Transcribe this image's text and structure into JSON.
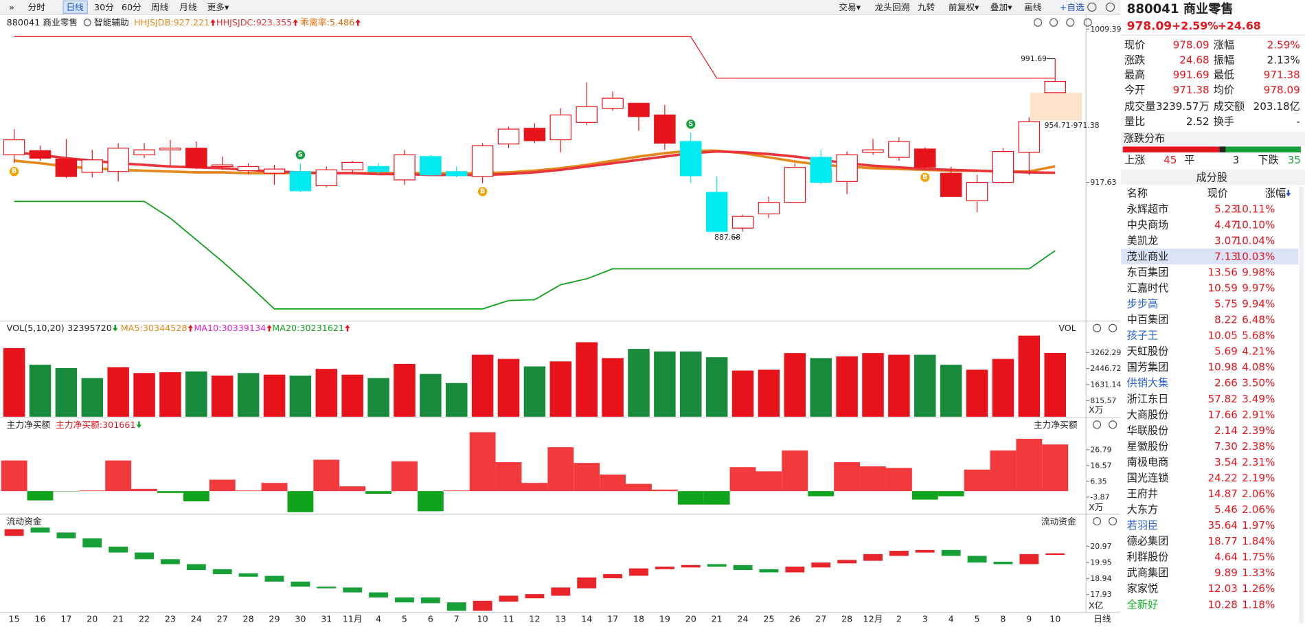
{
  "toolbar": {
    "left": [
      "»",
      "分时",
      "日线",
      "30分",
      "60分",
      "周线",
      "月线",
      "更多▾"
    ],
    "right": [
      "交易▾",
      "龙头回溯",
      "九转",
      "前复权▾",
      "叠加▾",
      "画线",
      "+自选"
    ]
  },
  "chart_data": [
    {
      "type": "candlestick",
      "title": "880041 商业零售",
      "helper": "智能辅助",
      "indicator": "乖离率:5.486",
      "categories": [
        "15",
        "16",
        "17",
        "20",
        "21",
        "22",
        "23",
        "24",
        "27",
        "28",
        "29",
        "30",
        "31",
        "11月",
        "4",
        "5",
        "6",
        "7",
        "10",
        "11",
        "12",
        "13",
        "14",
        "17",
        "18",
        "19",
        "20",
        "21",
        "24",
        "25",
        "26",
        "27",
        "28",
        "12月",
        "2",
        "3",
        "4",
        "5",
        "8",
        "9",
        "10"
      ],
      "open": [
        934.1,
        936.6,
        931.6,
        923.6,
        924.1,
        934.1,
        937.1,
        938.1,
        927.1,
        924.6,
        923.1,
        924.1,
        915.6,
        925.1,
        927.1,
        919.1,
        933.1,
        924.1,
        921.1,
        940.6,
        950.0,
        943.1,
        953.5,
        962.0,
        965.0,
        958.0,
        942.1,
        911.6,
        890.2,
        898.7,
        905.6,
        932.6,
        918.1,
        935.6,
        932.6,
        937.6,
        923.1,
        906.6,
        917.6,
        935.6,
        971.38
      ],
      "high": [
        949.5,
        939.6,
        943.6,
        937.1,
        941.1,
        941.1,
        943.1,
        942.1,
        933.1,
        929.1,
        928.1,
        929.1,
        927.1,
        930.6,
        929.1,
        937.1,
        934.1,
        927.1,
        941.1,
        951.0,
        953.0,
        962.0,
        977.5,
        972.0,
        965.0,
        964.0,
        947.5,
        921.1,
        898.2,
        909.1,
        929.1,
        937.1,
        936.1,
        943.6,
        944.6,
        938.6,
        927.1,
        922.1,
        938.1,
        956.5,
        991.69
      ],
      "low": [
        929.1,
        930.6,
        920.1,
        920.6,
        918.1,
        932.1,
        927.1,
        925.6,
        925.1,
        922.6,
        916.1,
        911.6,
        914.6,
        923.6,
        922.6,
        916.1,
        921.1,
        920.6,
        917.1,
        938.1,
        941.1,
        935.6,
        952.0,
        960.5,
        948.5,
        937.1,
        917.1,
        887.68,
        888.2,
        896.2,
        905.6,
        916.6,
        910.6,
        934.1,
        930.6,
        925.6,
        909.1,
        899.7,
        917.1,
        922.1,
        971.38
      ],
      "close": [
        943.1,
        932.1,
        921.1,
        931.1,
        938.1,
        937.1,
        938.1,
        926.6,
        928.1,
        927.1,
        925.6,
        912.6,
        925.1,
        929.6,
        924.1,
        934.1,
        922.1,
        921.6,
        939.6,
        949.5,
        942.6,
        958.0,
        963.0,
        968.0,
        957.0,
        941.1,
        921.6,
        888.2,
        897.2,
        905.6,
        926.6,
        917.6,
        934.1,
        937.1,
        942.1,
        926.6,
        909.1,
        917.6,
        936.1,
        954.0,
        978.09
      ],
      "styles": [
        "h",
        "r",
        "r",
        "h",
        "h",
        "h",
        "h",
        "r",
        "h",
        "h",
        "h",
        "c",
        "h",
        "h",
        "c",
        "h",
        "c",
        "c",
        "h",
        "h",
        "r",
        "h",
        "h",
        "h",
        "r",
        "r",
        "c",
        "c",
        "h",
        "h",
        "h",
        "c",
        "h",
        "h",
        "h",
        "r",
        "r",
        "h",
        "h",
        "h",
        "h"
      ],
      "palette": {
        "h": "#e8141c",
        "r": "#e8141c",
        "c": "#00eaf0"
      },
      "hollow": "h",
      "ylim": [
        835.8,
        1015.9
      ],
      "yticks": [
        1009.39,
        917.63
      ],
      "series": [
        {
          "name": "HHJSJDB:927.221",
          "color": "#e3891c",
          "width": 3,
          "values": [
            930.6,
            929.1,
            927.1,
            926.1,
            925.1,
            924.6,
            924.1,
            923.6,
            923.6,
            923.1,
            923.1,
            923.1,
            923.1,
            923.1,
            923.1,
            923.1,
            923.1,
            923.1,
            923.1,
            923.6,
            924.6,
            926.1,
            928.1,
            930.6,
            933.1,
            935.1,
            936.6,
            936.6,
            935.1,
            932.6,
            930.1,
            928.1,
            927.1,
            926.1,
            925.6,
            925.1,
            924.6,
            924.6,
            924.1,
            924.1,
            927.221
          ]
        },
        {
          "name": "HHJSJDC:923.355",
          "color": "#e8343a",
          "width": 3,
          "values": [
            935.6,
            934.1,
            932.1,
            930.6,
            929.1,
            928.1,
            927.1,
            926.6,
            926.1,
            925.1,
            924.1,
            923.6,
            923.1,
            923.1,
            922.6,
            922.6,
            922.1,
            922.1,
            922.1,
            922.6,
            923.6,
            925.1,
            927.1,
            929.1,
            931.1,
            933.1,
            935.1,
            936.1,
            935.6,
            934.6,
            933.1,
            931.1,
            929.1,
            927.6,
            926.6,
            925.6,
            925.1,
            924.6,
            924.1,
            923.6,
            923.355
          ]
        },
        {
          "color": "#e8141c",
          "width": 1,
          "values": [
            1004.9,
            1004.9,
            1004.9,
            1004.9,
            1004.9,
            1004.9,
            1004.9,
            1004.9,
            1004.9,
            1004.9,
            1004.9,
            1004.9,
            1004.9,
            1004.9,
            1004.9,
            1004.9,
            1004.9,
            1004.9,
            1004.9,
            1004.9,
            1004.9,
            1004.9,
            1004.9,
            1004.9,
            1004.9,
            1004.9,
            1004.9,
            980.0,
            980.0,
            980.0,
            980.0,
            980.0,
            980.0,
            980.0,
            980.0,
            980.0,
            980.0,
            980.0,
            980.0,
            980.0,
            980.0
          ]
        },
        {
          "color": "#12a11e",
          "width": 1.5,
          "values": [
            906.2,
            906.2,
            906.2,
            906.2,
            906.2,
            906.2,
            896.2,
            883.2,
            870.2,
            856.3,
            841.8,
            841.8,
            841.8,
            841.8,
            841.8,
            841.8,
            841.8,
            841.8,
            841.8,
            846.8,
            847.3,
            856.3,
            859.8,
            865.8,
            865.8,
            865.8,
            865.8,
            865.8,
            865.8,
            865.8,
            865.8,
            865.8,
            865.8,
            865.8,
            865.8,
            865.8,
            865.8,
            865.8,
            865.8,
            865.8,
            876.7
          ]
        }
      ],
      "annotations": [
        {
          "text": "991.69",
          "index": 40,
          "value": 991.69
        },
        {
          "text": "887.68",
          "index": 27,
          "value": 887.68
        }
      ],
      "zone": {
        "range": [
          954.71,
          971.38
        ],
        "label": "954.71-971.38"
      },
      "signals": [
        {
          "index": 0,
          "label": "B"
        },
        {
          "index": 11,
          "label": "S"
        },
        {
          "index": 18,
          "label": "B"
        },
        {
          "index": 26,
          "label": "S"
        },
        {
          "index": 35,
          "label": "B"
        }
      ]
    },
    {
      "type": "bar",
      "title": "VOL(5,10,20)",
      "value_label": "32395720",
      "indicators": [
        {
          "text": "MA5:30344528",
          "color": "#e3891c"
        },
        {
          "text": "MA10:30339134",
          "color": "#e020d0"
        },
        {
          "text": "MA20:30231621",
          "color": "#12a11e"
        }
      ],
      "side_label": "VOL",
      "unit": "X万",
      "values": [
        3486,
        2641,
        2472,
        1965,
        2514,
        2219,
        2261,
        2303,
        2092,
        2219,
        2134,
        2092,
        2430,
        2134,
        1965,
        2684,
        2176,
        1712,
        3148,
        2937,
        2557,
        2810,
        3782,
        2979,
        3444,
        3317,
        3317,
        3022,
        2345,
        2388,
        3233,
        2979,
        3064,
        3233,
        3148,
        3148,
        2641,
        2388,
        2937,
        4120,
        3239.57
      ],
      "colors": [
        "r",
        "g",
        "g",
        "g",
        "r",
        "r",
        "r",
        "g",
        "r",
        "g",
        "r",
        "g",
        "r",
        "r",
        "g",
        "r",
        "g",
        "g",
        "r",
        "r",
        "g",
        "r",
        "r",
        "r",
        "g",
        "g",
        "g",
        "g",
        "r",
        "r",
        "r",
        "g",
        "r",
        "r",
        "r",
        "g",
        "g",
        "r",
        "r",
        "r",
        "r"
      ],
      "palette": {
        "r": "#e8121a",
        "g": "#188a3c"
      },
      "ylim": [
        0,
        4250
      ],
      "yticks": [
        3262.29,
        2446.72,
        1631.14,
        815.57
      ]
    },
    {
      "type": "bar",
      "title": "主力净买额",
      "legend": "主力净买额:301661",
      "side_label": "主力净买额",
      "unit": "X万",
      "values": [
        19.8,
        -6.0,
        -0.2,
        0.4,
        19.8,
        1.5,
        -1.2,
        -6.6,
        7.4,
        0.4,
        5.3,
        -13.6,
        20.3,
        3.1,
        -1.7,
        19.3,
        -13.0,
        0.4,
        38.1,
        18.7,
        5.3,
        28.4,
        18.2,
        10.7,
        4.7,
        1.0,
        -8.7,
        -8.7,
        15.5,
        12.8,
        26.3,
        -3.3,
        18.7,
        16.0,
        15.0,
        -5.5,
        -3.3,
        13.9,
        26.3,
        33.8,
        30.17
      ],
      "palette": {
        "r": "#f23a3c",
        "g": "#10a31c"
      },
      "ylim": [
        -14.1,
        39.2
      ],
      "yticks": [
        26.79,
        16.57,
        6.35,
        -3.87
      ]
    },
    {
      "type": "candlestick",
      "title": "流动资金",
      "side_label": "流动资金",
      "unit": "X亿",
      "xlabel": "日线",
      "open": [
        21.65,
        22.12,
        21.81,
        21.44,
        20.92,
        20.55,
        20.13,
        19.82,
        19.5,
        19.24,
        19.08,
        18.72,
        18.4,
        18.35,
        18.04,
        17.72,
        17.72,
        17.41,
        16.93,
        17.51,
        17.72,
        17.88,
        18.35,
        18.98,
        19.14,
        19.55,
        19.66,
        19.82,
        19.76,
        19.5,
        19.35,
        19.66,
        19.92,
        20.08,
        20.39,
        20.6,
        20.71,
        20.34,
        19.97,
        19.87,
        20.45
      ],
      "close": [
        22.02,
        21.86,
        21.49,
        20.92,
        20.6,
        20.18,
        19.87,
        19.5,
        19.24,
        19.08,
        18.77,
        18.45,
        18.35,
        18.09,
        17.77,
        17.46,
        17.41,
        16.93,
        17.51,
        17.83,
        17.93,
        18.35,
        18.98,
        19.19,
        19.55,
        19.66,
        19.76,
        19.71,
        19.5,
        19.35,
        19.66,
        19.92,
        20.08,
        20.45,
        20.66,
        20.71,
        20.39,
        19.97,
        19.87,
        20.45,
        20.5
      ],
      "palette": {
        "r": "#e8242a",
        "g": "#18a038"
      },
      "ylim": [
        16.83,
        22.23
      ],
      "yticks": [
        20.97,
        19.95,
        18.94,
        17.93
      ]
    }
  ],
  "quote": {
    "name": "880041 商业零售",
    "price": "978.09",
    "change_pct": "+2.59%",
    "change": "+24.68",
    "stats": [
      [
        "现价",
        "978.09",
        "涨幅",
        "2.59%"
      ],
      [
        "涨跌",
        "24.68",
        "振幅",
        "2.13%"
      ],
      [
        "最高",
        "991.69",
        "最低",
        "971.38"
      ],
      [
        "今开",
        "971.38",
        "均价",
        "978.09"
      ],
      [
        "成交量",
        "3239.57万",
        "成交额",
        "203.18亿"
      ],
      [
        "量比",
        "2.52",
        "换手",
        "-"
      ]
    ],
    "distribution": {
      "title": "涨跌分布",
      "up_label": "上涨",
      "up": 45,
      "flat_label": "平",
      "flat": 3,
      "down_label": "下跌",
      "down": 35
    }
  },
  "constituents": {
    "title": "成分股",
    "columns": [
      "名称",
      "现价",
      "涨幅"
    ],
    "rows": [
      [
        "永辉超市",
        "5.23",
        "10.11%"
      ],
      [
        "中央商场",
        "4.47",
        "10.10%"
      ],
      [
        "美凯龙",
        "3.07",
        "10.04%"
      ],
      [
        "茂业商业",
        "7.13",
        "10.03%"
      ],
      [
        "东百集团",
        "13.56",
        "9.98%"
      ],
      [
        "汇嘉时代",
        "10.59",
        "9.97%"
      ],
      [
        "步步高",
        "5.75",
        "9.94%"
      ],
      [
        "中百集团",
        "8.22",
        "6.48%"
      ],
      [
        "孩子王",
        "10.05",
        "5.68%"
      ],
      [
        "天虹股份",
        "5.69",
        "4.21%"
      ],
      [
        "国芳集团",
        "10.98",
        "4.08%"
      ],
      [
        "供销大集",
        "2.66",
        "3.50%"
      ],
      [
        "浙江东日",
        "57.82",
        "3.49%"
      ],
      [
        "大商股份",
        "17.66",
        "2.91%"
      ],
      [
        "华联股份",
        "2.14",
        "2.39%"
      ],
      [
        "星徽股份",
        "7.30",
        "2.38%"
      ],
      [
        "南极电商",
        "3.54",
        "2.31%"
      ],
      [
        "国光连锁",
        "24.22",
        "2.19%"
      ],
      [
        "王府井",
        "14.87",
        "2.06%"
      ],
      [
        "大东方",
        "5.46",
        "2.06%"
      ],
      [
        "若羽臣",
        "35.64",
        "1.97%"
      ],
      [
        "德必集团",
        "18.77",
        "1.84%"
      ],
      [
        "利群股份",
        "4.64",
        "1.75%"
      ],
      [
        "武商集团",
        "9.89",
        "1.33%"
      ],
      [
        "家家悦",
        "12.03",
        "1.26%"
      ],
      [
        "全新好",
        "10.28",
        "1.18%"
      ]
    ]
  }
}
